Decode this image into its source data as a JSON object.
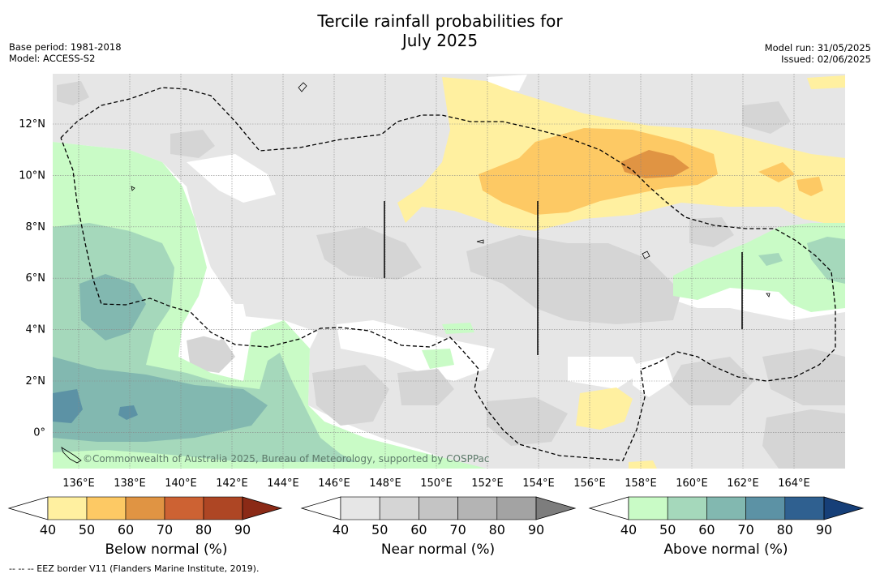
{
  "title_line1": "Tercile rainfall probabilities for",
  "title_line2": "July 2025",
  "base_period": "Base period: 1981-2018",
  "model": "Model: ACCESS-S2",
  "model_run": "Model run: 31/05/2025",
  "issued": "Issued: 02/06/2025",
  "copyright": "©Commonwealth of Australia 2025, Bureau of Meteorology, supported by COSPPac",
  "footer": "-- -- -- EEZ border V11 (Flanders Marine Institute, 2019).",
  "lat_labels": [
    {
      "label": "12°N",
      "lat": 12
    },
    {
      "label": "10°N",
      "lat": 10
    },
    {
      "label": "8°N",
      "lat": 8
    },
    {
      "label": "6°N",
      "lat": 6
    },
    {
      "label": "4°N",
      "lat": 4
    },
    {
      "label": "2°N",
      "lat": 2
    },
    {
      "label": "0°",
      "lat": 0
    }
  ],
  "lon_labels": [
    {
      "label": "136°E",
      "lon": 136
    },
    {
      "label": "138°E",
      "lon": 138
    },
    {
      "label": "140°E",
      "lon": 140
    },
    {
      "label": "142°E",
      "lon": 142
    },
    {
      "label": "144°E",
      "lon": 144
    },
    {
      "label": "146°E",
      "lon": 146
    },
    {
      "label": "148°E",
      "lon": 148
    },
    {
      "label": "150°E",
      "lon": 150
    },
    {
      "label": "152°E",
      "lon": 152
    },
    {
      "label": "154°E",
      "lon": 154
    },
    {
      "label": "156°E",
      "lon": 156
    },
    {
      "label": "158°E",
      "lon": 158
    },
    {
      "label": "160°E",
      "lon": 160
    },
    {
      "label": "162°E",
      "lon": 162
    },
    {
      "label": "164°E",
      "lon": 164
    }
  ],
  "colorbars": [
    {
      "label": "Below normal (%)",
      "ticks": [
        "40",
        "50",
        "60",
        "70",
        "80",
        "90"
      ],
      "colors": [
        "#fff0a0",
        "#fdc964",
        "#e09443",
        "#cd6233",
        "#ae4624"
      ],
      "arrow_color": "#8b2a16"
    },
    {
      "label": "Near normal (%)",
      "ticks": [
        "40",
        "50",
        "60",
        "70",
        "80",
        "90"
      ],
      "colors": [
        "#e6e6e6",
        "#d5d5d5",
        "#c4c4c4",
        "#b4b4b4",
        "#a3a3a3"
      ],
      "arrow_color": "#7d7d7d"
    },
    {
      "label": "Above normal (%)",
      "ticks": [
        "40",
        "50",
        "60",
        "70",
        "80",
        "90"
      ],
      "colors": [
        "#c9fbc6",
        "#a5d8bb",
        "#82b8b0",
        "#5c92a5",
        "#2f6090"
      ],
      "arrow_color": "#163f78"
    }
  ]
}
